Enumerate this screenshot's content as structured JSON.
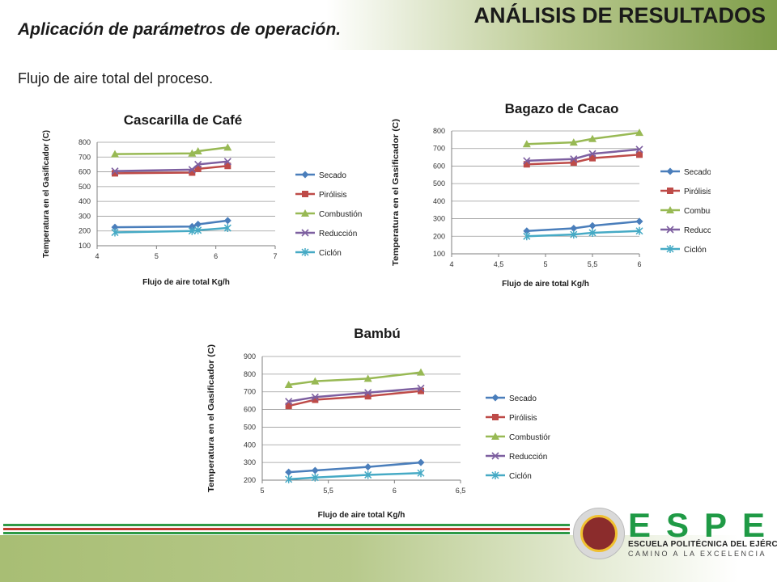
{
  "header": {
    "title": "ANÁLISIS DE RESULTADOS",
    "subtitle": "Aplicación de parámetros de operación.",
    "intro": "Flujo de aire total del proceso."
  },
  "logo": {
    "word": "ESPE",
    "line1": "ESCUELA POLITÉCNICA DEL EJÉRCITO",
    "line2": "CAMINO A LA EXCELENCIA"
  },
  "colors": {
    "Secado": "#4a7ebb",
    "Pirólisis": "#be4b48",
    "Combustión": "#98b954",
    "Reducción": "#7d5fa0",
    "Ciclón": "#46aac5",
    "green": "#2e9a46",
    "red": "#c0392b"
  },
  "chart_data": [
    {
      "type": "line",
      "title": "Cascarilla de Café",
      "xlabel": "Flujo de aire total Kg/h",
      "ylabel": "Temperatura  en el Gasificador  (C)",
      "xlim": [
        4,
        7
      ],
      "ylim": [
        100,
        800
      ],
      "xticks": [
        "4",
        "5",
        "6",
        "7"
      ],
      "yticks": [
        "100",
        "200",
        "300",
        "400",
        "500",
        "600",
        "700",
        "800"
      ],
      "grid": true,
      "legend": "right",
      "series": [
        {
          "name": "Secado",
          "marker": "diamond",
          "x": [
            4.3,
            5.6,
            5.7,
            6.2
          ],
          "y": [
            225,
            230,
            245,
            270
          ]
        },
        {
          "name": "Pirólisis",
          "marker": "square",
          "x": [
            4.3,
            5.6,
            5.7,
            6.2
          ],
          "y": [
            590,
            595,
            620,
            640
          ]
        },
        {
          "name": "Combustión",
          "marker": "triangle",
          "x": [
            4.3,
            5.6,
            5.7,
            6.2
          ],
          "y": [
            720,
            725,
            740,
            765
          ]
        },
        {
          "name": "Reducción",
          "marker": "x",
          "x": [
            4.3,
            5.6,
            5.7,
            6.2
          ],
          "y": [
            605,
            615,
            650,
            670
          ]
        },
        {
          "name": "Ciclón",
          "marker": "star",
          "x": [
            4.3,
            5.6,
            5.7,
            6.2
          ],
          "y": [
            190,
            200,
            205,
            220
          ]
        }
      ]
    },
    {
      "type": "line",
      "title": "Bagazo de Cacao",
      "xlabel": "Flujo de aire total Kg/h",
      "ylabel": "Temperatura  en el Gasificador (C)",
      "xlim": [
        4,
        6
      ],
      "ylim": [
        100,
        800
      ],
      "xticks": [
        "4",
        "4,5",
        "5",
        "5,5",
        "6"
      ],
      "yticks": [
        "100",
        "200",
        "300",
        "400",
        "500",
        "600",
        "700",
        "800"
      ],
      "grid": true,
      "legend": "right",
      "series": [
        {
          "name": "Secado",
          "marker": "diamond",
          "x": [
            4.8,
            5.3,
            5.5,
            6.0
          ],
          "y": [
            230,
            245,
            260,
            285
          ]
        },
        {
          "name": "Pirólisis",
          "marker": "square",
          "x": [
            4.8,
            5.3,
            5.5,
            6.0
          ],
          "y": [
            610,
            620,
            645,
            665
          ]
        },
        {
          "name": "Combustión",
          "marker": "triangle",
          "x": [
            4.8,
            5.3,
            5.5,
            6.0
          ],
          "y": [
            725,
            735,
            755,
            790
          ]
        },
        {
          "name": "Reducción",
          "marker": "x",
          "x": [
            4.8,
            5.3,
            5.5,
            6.0
          ],
          "y": [
            630,
            640,
            670,
            695
          ]
        },
        {
          "name": "Ciclón",
          "marker": "star",
          "x": [
            4.8,
            5.3,
            5.5,
            6.0
          ],
          "y": [
            200,
            210,
            220,
            230
          ]
        }
      ]
    },
    {
      "type": "line",
      "title": "Bambú",
      "xlabel": "Flujo de aire total Kg/h",
      "ylabel": "Temperatura  en el Gasificador (C)",
      "xlim": [
        5,
        6.5
      ],
      "ylim": [
        200,
        900
      ],
      "xticks": [
        "5",
        "5,5",
        "6",
        "6,5"
      ],
      "yticks": [
        "200",
        "300",
        "400",
        "500",
        "600",
        "700",
        "800",
        "900"
      ],
      "grid": true,
      "legend": "right",
      "series": [
        {
          "name": "Secado",
          "marker": "diamond",
          "x": [
            5.2,
            5.4,
            5.8,
            6.2
          ],
          "y": [
            245,
            255,
            275,
            300
          ]
        },
        {
          "name": "Pirólisis",
          "marker": "square",
          "x": [
            5.2,
            5.4,
            5.8,
            6.2
          ],
          "y": [
            620,
            655,
            675,
            705
          ]
        },
        {
          "name": "Combustión",
          "marker": "triangle",
          "x": [
            5.2,
            5.4,
            5.8,
            6.2
          ],
          "y": [
            740,
            760,
            775,
            810
          ]
        },
        {
          "name": "Reducción",
          "marker": "x",
          "x": [
            5.2,
            5.4,
            5.8,
            6.2
          ],
          "y": [
            645,
            670,
            695,
            720
          ]
        },
        {
          "name": "Ciclón",
          "marker": "star",
          "x": [
            5.2,
            5.4,
            5.8,
            6.2
          ],
          "y": [
            205,
            215,
            230,
            240
          ]
        }
      ]
    }
  ]
}
